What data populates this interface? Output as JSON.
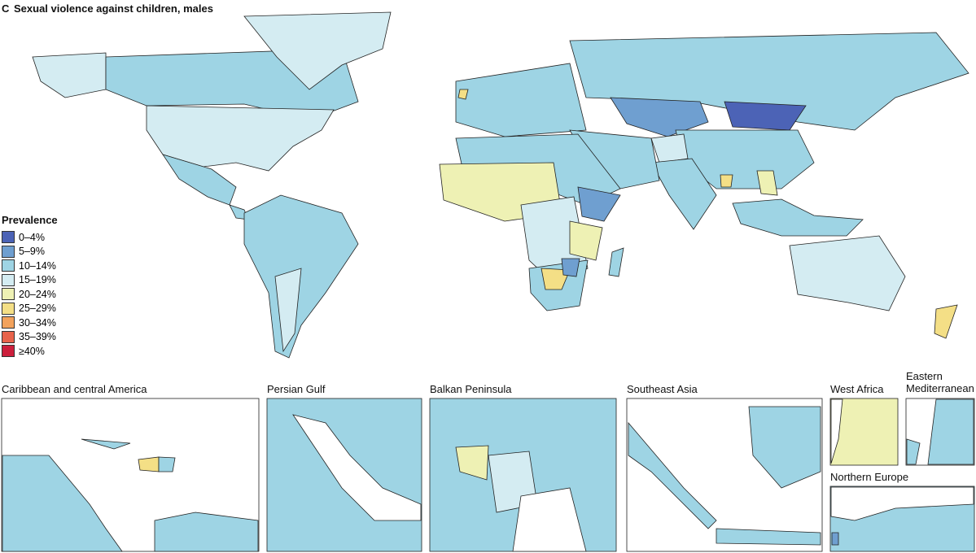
{
  "panel_label": "C",
  "title": "Sexual violence against children, males",
  "legend": {
    "title": "Prevalence",
    "items": [
      {
        "label": "0–4%",
        "color": "#4c63b6"
      },
      {
        "label": "5–9%",
        "color": "#6f9fd0"
      },
      {
        "label": "10–14%",
        "color": "#9ed4e4"
      },
      {
        "label": "15–19%",
        "color": "#d4ecf2"
      },
      {
        "label": "20–24%",
        "color": "#eef1b4"
      },
      {
        "label": "25–29%",
        "color": "#f4df86"
      },
      {
        "label": "30–34%",
        "color": "#f2a25c"
      },
      {
        "label": "35–39%",
        "color": "#e8634b"
      },
      {
        "label": "≥40%",
        "color": "#cc1f3c"
      }
    ]
  },
  "insets": [
    "Caribbean and central America",
    "Persian Gulf",
    "Balkan Peninsula",
    "Southeast Asia",
    "West Africa",
    "Eastern Mediterranean",
    "Northern Europe"
  ]
}
